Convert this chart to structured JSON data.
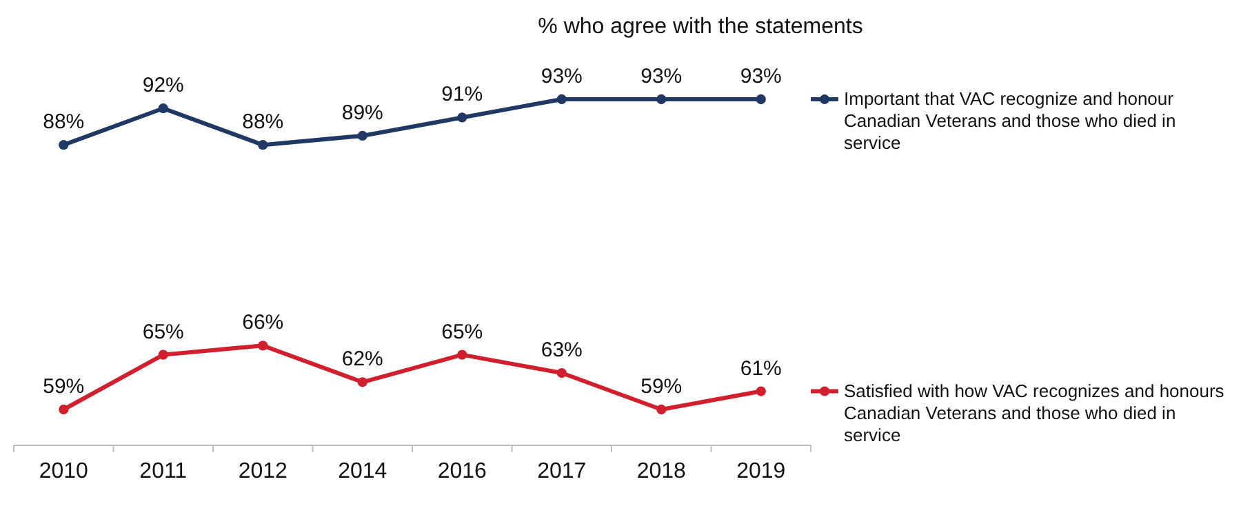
{
  "chart_data": {
    "type": "line",
    "title": "% who agree with the statements",
    "categories": [
      "2010",
      "2011",
      "2012",
      "2014",
      "2016",
      "2017",
      "2018",
      "2019"
    ],
    "series": [
      {
        "name": "Important that VAC recognize and honour Canadian Veterans and those who died in service",
        "color": "#203864",
        "values": [
          88,
          92,
          88,
          89,
          91,
          93,
          93,
          93
        ],
        "value_labels": [
          "88%",
          "92%",
          "88%",
          "89%",
          "91%",
          "93%",
          "93%",
          "93%"
        ]
      },
      {
        "name": "Satisfied with how VAC recognizes and honours Canadian Veterans and those who died in service",
        "color": "#d0202e",
        "values": [
          59,
          65,
          66,
          62,
          65,
          63,
          59,
          61
        ],
        "value_labels": [
          "59%",
          "65%",
          "66%",
          "62%",
          "65%",
          "63%",
          "59%",
          "61%"
        ]
      }
    ],
    "legend": "right",
    "marker": "circle",
    "line_style": "solid"
  }
}
